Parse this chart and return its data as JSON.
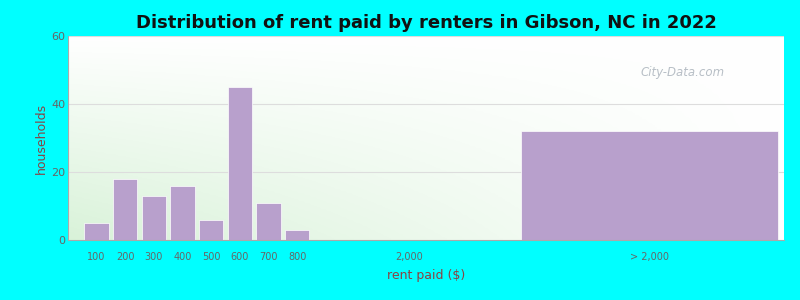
{
  "title": "Distribution of rent paid by renters in Gibson, NC in 2022",
  "xlabel": "rent paid ($)",
  "ylabel": "households",
  "background_outer": "#00FFFF",
  "bar_color": "#b8a0cc",
  "bar_edge_color": "#ffffff",
  "ylim": [
    0,
    60
  ],
  "yticks": [
    0,
    20,
    40,
    60
  ],
  "bars_left": {
    "labels": [
      "100",
      "200",
      "300",
      "400",
      "500",
      "600",
      "700",
      "800"
    ],
    "values": [
      5,
      18,
      13,
      16,
      6,
      45,
      11,
      3
    ]
  },
  "bar_right": {
    "label": "> 2,000",
    "value": 32
  },
  "xtick_mid": "2,000",
  "watermark": "City-Data.com",
  "title_fontsize": 13,
  "axis_label_fontsize": 9,
  "tick_fontsize": 8,
  "grid_color": "#dddddd",
  "tick_color": "#666666",
  "label_color": "#884444"
}
